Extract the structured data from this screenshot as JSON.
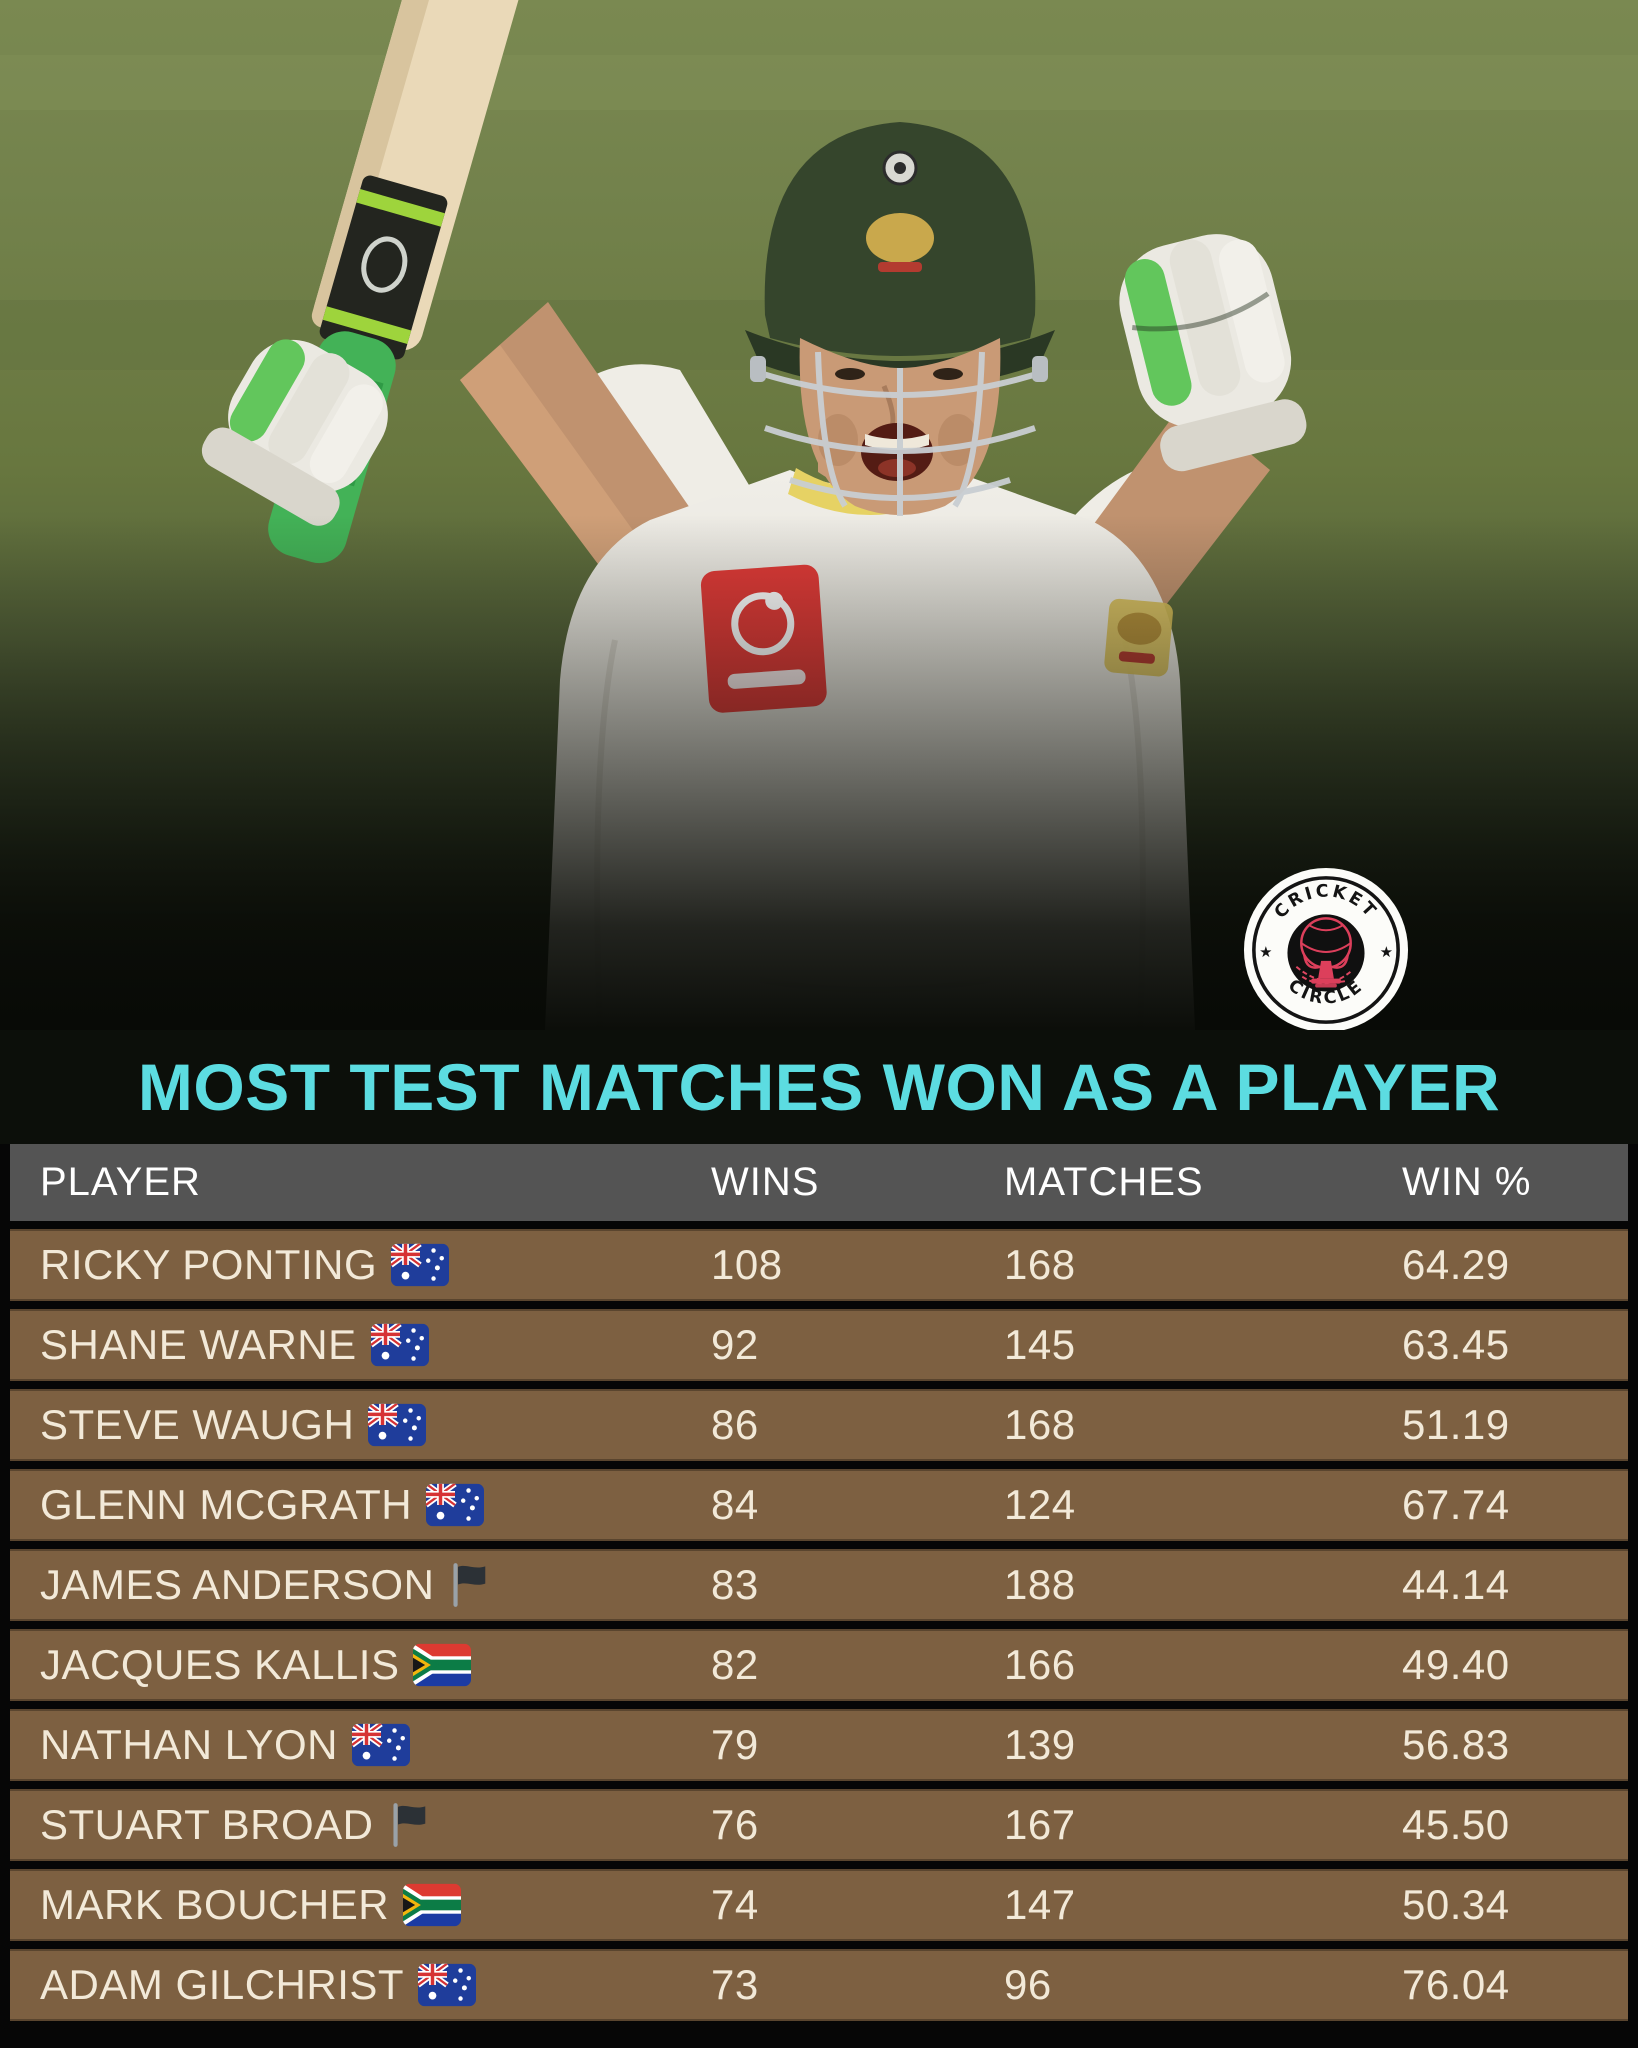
{
  "brand": {
    "logo_top_text": "CRICKET",
    "logo_bottom_text": "CIRCLE",
    "logo_star": "★"
  },
  "colors": {
    "title_color": "#5CDCE1",
    "header_bg": "#545454",
    "header_text": "#FFFFFF",
    "row_bg": "#7D6041",
    "row_text": "#F2E9D8",
    "backdrop": "#060606"
  },
  "chart_data": {
    "type": "table",
    "title": "MOST TEST MATCHES WON AS A PLAYER",
    "columns": [
      "PLAYER",
      "WINS",
      "MATCHES",
      "WIN %"
    ],
    "rows": [
      {
        "player": "RICKY PONTING",
        "country": "australia",
        "wins": "108",
        "matches": "168",
        "win_pct": "64.29"
      },
      {
        "player": "SHANE WARNE",
        "country": "australia",
        "wins": "92",
        "matches": "145",
        "win_pct": "63.45"
      },
      {
        "player": "STEVE WAUGH",
        "country": "australia",
        "wins": "86",
        "matches": "168",
        "win_pct": "51.19"
      },
      {
        "player": "GLENN MCGRATH",
        "country": "australia",
        "wins": "84",
        "matches": "124",
        "win_pct": "67.74"
      },
      {
        "player": "JAMES ANDERSON",
        "country": "england",
        "wins": "83",
        "matches": "188",
        "win_pct": "44.14"
      },
      {
        "player": "JACQUES KALLIS",
        "country": "south-africa",
        "wins": "82",
        "matches": "166",
        "win_pct": "49.40"
      },
      {
        "player": "NATHAN LYON",
        "country": "australia",
        "wins": "79",
        "matches": "139",
        "win_pct": "56.83"
      },
      {
        "player": "STUART BROAD",
        "country": "england",
        "wins": "76",
        "matches": "167",
        "win_pct": "45.50"
      },
      {
        "player": "MARK BOUCHER",
        "country": "south-africa",
        "wins": "74",
        "matches": "147",
        "win_pct": "50.34"
      },
      {
        "player": "ADAM GILCHRIST",
        "country": "australia",
        "wins": "73",
        "matches": "96",
        "win_pct": "76.04"
      }
    ]
  }
}
